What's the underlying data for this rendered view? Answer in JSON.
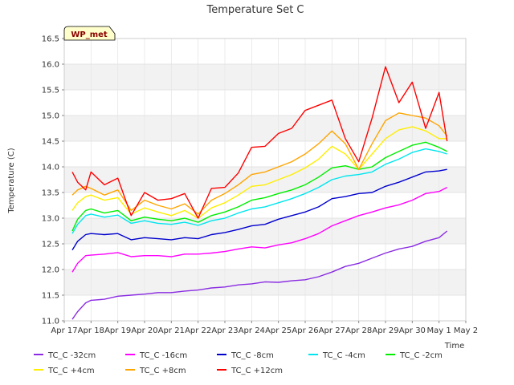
{
  "chart_data": {
    "type": "line",
    "title": "Temperature Set C",
    "xlabel": "Time",
    "ylabel": "Temperature (C)",
    "badge": "WP_met",
    "xlim": [
      0,
      15
    ],
    "ylim": [
      11.0,
      16.5
    ],
    "x_ticks": [
      0,
      1,
      2,
      3,
      4,
      5,
      6,
      7,
      8,
      9,
      10,
      11,
      12,
      13,
      14,
      15
    ],
    "x_tick_labels": [
      "Apr 17",
      "Apr 18",
      "Apr 19",
      "Apr 20",
      "Apr 21",
      "Apr 22",
      "Apr 23",
      "Apr 24",
      "Apr 25",
      "Apr 26",
      "Apr 27",
      "Apr 28",
      "Apr 29",
      "Apr 30",
      "May 1",
      "May 2"
    ],
    "y_ticks": [
      11.0,
      11.5,
      12.0,
      12.5,
      13.0,
      13.5,
      14.0,
      14.5,
      15.0,
      15.5,
      16.0,
      16.5
    ],
    "y_tick_labels": [
      "11.0",
      "11.5",
      "12.0",
      "12.5",
      "13.0",
      "13.5",
      "14.0",
      "14.5",
      "15.0",
      "15.5",
      "16.0",
      "16.5"
    ],
    "grid": true,
    "legend_position": "bottom",
    "x": [
      0.3,
      0.5,
      0.8,
      1,
      1.5,
      2,
      2.5,
      3,
      3.5,
      4,
      4.5,
      5,
      5.5,
      6,
      6.5,
      7,
      7.5,
      8,
      8.5,
      9,
      9.5,
      10,
      10.5,
      11,
      11.5,
      12,
      12.5,
      13,
      13.5,
      14,
      14.3
    ],
    "series": [
      {
        "name": "TC_C -32cm",
        "color": "#8a2be2",
        "values": [
          11.03,
          11.18,
          11.35,
          11.4,
          11.42,
          11.48,
          11.5,
          11.52,
          11.55,
          11.55,
          11.58,
          11.6,
          11.64,
          11.66,
          11.7,
          11.72,
          11.76,
          11.75,
          11.78,
          11.8,
          11.86,
          11.95,
          12.06,
          12.12,
          12.22,
          12.32,
          12.4,
          12.45,
          12.55,
          12.62,
          12.75
        ]
      },
      {
        "name": "TC_C -16cm",
        "color": "#ff00ff",
        "values": [
          11.95,
          12.12,
          12.27,
          12.28,
          12.3,
          12.33,
          12.25,
          12.27,
          12.27,
          12.25,
          12.3,
          12.3,
          12.32,
          12.35,
          12.4,
          12.44,
          12.42,
          12.48,
          12.52,
          12.6,
          12.7,
          12.85,
          12.95,
          13.05,
          13.12,
          13.2,
          13.26,
          13.35,
          13.48,
          13.52,
          13.6
        ]
      },
      {
        "name": "TC_C -8cm",
        "color": "#0000cd",
        "values": [
          12.38,
          12.55,
          12.68,
          12.7,
          12.68,
          12.7,
          12.58,
          12.62,
          12.6,
          12.58,
          12.62,
          12.6,
          12.68,
          12.72,
          12.78,
          12.85,
          12.88,
          12.98,
          13.05,
          13.12,
          13.22,
          13.38,
          13.42,
          13.48,
          13.5,
          13.62,
          13.7,
          13.8,
          13.9,
          13.92,
          13.95
        ]
      },
      {
        "name": "TC_C -4cm",
        "color": "#00e5ee",
        "values": [
          12.7,
          12.88,
          13.05,
          13.08,
          13.02,
          13.06,
          12.9,
          12.95,
          12.9,
          12.88,
          12.92,
          12.86,
          12.95,
          13.0,
          13.1,
          13.18,
          13.22,
          13.3,
          13.38,
          13.48,
          13.6,
          13.75,
          13.82,
          13.85,
          13.9,
          14.05,
          14.15,
          14.28,
          14.35,
          14.3,
          14.25
        ]
      },
      {
        "name": "TC_C -2cm",
        "color": "#00ee00",
        "values": [
          12.75,
          12.98,
          13.15,
          13.18,
          13.1,
          13.15,
          12.95,
          13.02,
          12.98,
          12.95,
          13.0,
          12.92,
          13.05,
          13.12,
          13.22,
          13.35,
          13.4,
          13.48,
          13.55,
          13.65,
          13.8,
          13.98,
          14.02,
          13.95,
          14.0,
          14.18,
          14.3,
          14.42,
          14.48,
          14.38,
          14.3
        ]
      },
      {
        "name": "TC_C +4cm",
        "color": "#ffee00",
        "values": [
          13.15,
          13.3,
          13.42,
          13.45,
          13.35,
          13.4,
          13.08,
          13.2,
          13.12,
          13.05,
          13.15,
          13.0,
          13.2,
          13.3,
          13.45,
          13.62,
          13.65,
          13.75,
          13.85,
          13.98,
          14.15,
          14.4,
          14.25,
          13.95,
          14.25,
          14.55,
          14.72,
          14.78,
          14.7,
          14.55,
          14.55
        ]
      },
      {
        "name": "TC_C +8cm",
        "color": "#ffa500",
        "values": [
          13.45,
          13.55,
          13.62,
          13.58,
          13.45,
          13.55,
          13.15,
          13.35,
          13.25,
          13.18,
          13.28,
          13.08,
          13.35,
          13.48,
          13.65,
          13.85,
          13.9,
          14.0,
          14.1,
          14.25,
          14.45,
          14.7,
          14.45,
          13.95,
          14.45,
          14.9,
          15.05,
          15.0,
          14.95,
          14.8,
          14.6
        ]
      },
      {
        "name": "TC_C +12cm",
        "color": "#ff0000",
        "values": [
          13.9,
          13.7,
          13.55,
          13.9,
          13.65,
          13.78,
          13.05,
          13.5,
          13.35,
          13.38,
          13.48,
          13.0,
          13.58,
          13.6,
          13.88,
          14.38,
          14.4,
          14.65,
          14.75,
          15.1,
          15.2,
          15.3,
          14.55,
          14.1,
          14.95,
          15.95,
          15.25,
          15.65,
          14.75,
          15.45,
          14.5
        ]
      }
    ]
  }
}
